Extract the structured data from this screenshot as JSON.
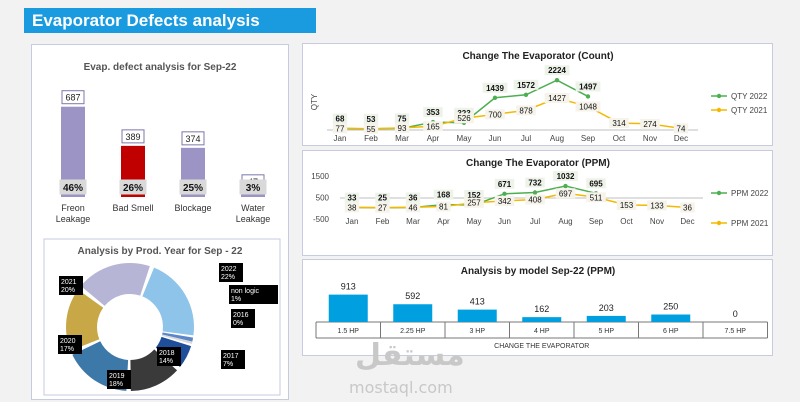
{
  "header": {
    "title": "Evaporator Defects analysis"
  },
  "watermark": {
    "arabic": "مستقل",
    "latin": "mostaql.com"
  },
  "colors": {
    "accent": "#1a9be0",
    "line2022": "#4caf50",
    "line2021": "#f5b800",
    "bar_model": "#00a0e0"
  },
  "chart_data": [
    {
      "id": "defect_bar",
      "type": "bar",
      "title": "Evap. defect analysis for Sep-22",
      "categories": [
        "Freon\nLeakage",
        "Bad Smell",
        "Blockage",
        "Water\nLeakage"
      ],
      "values": [
        687,
        389,
        374,
        47
      ],
      "value_labels": [
        "687",
        "389",
        "374",
        "47"
      ],
      "percent_labels": [
        "46%",
        "26%",
        "25%",
        "3%"
      ],
      "colors": [
        "#9b94c4",
        "#c00000",
        "#9b94c4",
        "#9b94c4"
      ],
      "ylim": [
        0,
        700
      ]
    },
    {
      "id": "prod_year_donut",
      "type": "pie",
      "title": "Analysis  by Prod. Year for Sep - 22",
      "slices": [
        {
          "label": "2022",
          "pct_label": "22%",
          "value": 22,
          "color": "#8ec4ea"
        },
        {
          "label": "non logic",
          "pct_label": "1%",
          "value": 1,
          "color": "#5b86c8"
        },
        {
          "label": "2016",
          "pct_label": "0%",
          "value": 0.6,
          "color": "#d9d9d9"
        },
        {
          "label": "2017",
          "pct_label": "7%",
          "value": 7,
          "color": "#1f4e9a"
        },
        {
          "label": "2018",
          "pct_label": "14%",
          "value": 14,
          "color": "#3a3a3a"
        },
        {
          "label": "2019",
          "pct_label": "18%",
          "value": 18,
          "color": "#3c79a8"
        },
        {
          "label": "2020",
          "pct_label": "17%",
          "value": 17,
          "color": "#c8a846"
        },
        {
          "label": "2021",
          "pct_label": "20%",
          "value": 20,
          "color": "#b7b5d6"
        }
      ]
    },
    {
      "id": "count_line",
      "type": "line",
      "title": "Change The Evaporator (Count)",
      "ylabel": "QTY",
      "categories": [
        "Jan",
        "Feb",
        "Mar",
        "Apr",
        "May",
        "Jun",
        "Jul",
        "Aug",
        "Sep",
        "Oct",
        "Nov",
        "Dec"
      ],
      "series": [
        {
          "name": "QTY 2022",
          "values": [
            68,
            53,
            75,
            353,
            323,
            1439,
            1572,
            2224,
            1497,
            null,
            null,
            null
          ],
          "color": "#4caf50"
        },
        {
          "name": "QTY 2021",
          "values": [
            77,
            55,
            93,
            165,
            526,
            700,
            878,
            1427,
            1048,
            314,
            274,
            74
          ],
          "color": "#f5b800"
        }
      ],
      "ylim": [
        0,
        2500
      ]
    },
    {
      "id": "ppm_line",
      "type": "line",
      "title": "Change The Evaporator (PPM)",
      "yticks": [
        "1500",
        "500",
        "-500"
      ],
      "categories": [
        "Jan",
        "Feb",
        "Mar",
        "Apr",
        "May",
        "Jun",
        "Jul",
        "Aug",
        "Sep",
        "Oct",
        "Nov",
        "Dec"
      ],
      "series": [
        {
          "name": "PPM 2022",
          "values": [
            33,
            25,
            36,
            168,
            152,
            671,
            732,
            1032,
            695,
            null,
            null,
            null
          ],
          "color": "#4caf50"
        },
        {
          "name": "PPM 2021",
          "values": [
            38,
            27,
            46,
            81,
            257,
            342,
            408,
            697,
            511,
            153,
            133,
            36
          ],
          "color": "#f5b800"
        }
      ],
      "ylim": [
        -500,
        1500
      ]
    },
    {
      "id": "model_bar",
      "type": "bar",
      "title": "Analysis by model  Sep-22 (PPM)",
      "xlabel": "CHANGE THE EVAPORATOR",
      "categories": [
        "1.5 HP",
        "2.25 HP",
        "3 HP",
        "4 HP",
        "5 HP",
        "6 HP",
        "7.5 HP"
      ],
      "values": [
        913,
        592,
        413,
        162,
        203,
        250,
        0
      ],
      "ylim": [
        0,
        1000
      ]
    }
  ]
}
